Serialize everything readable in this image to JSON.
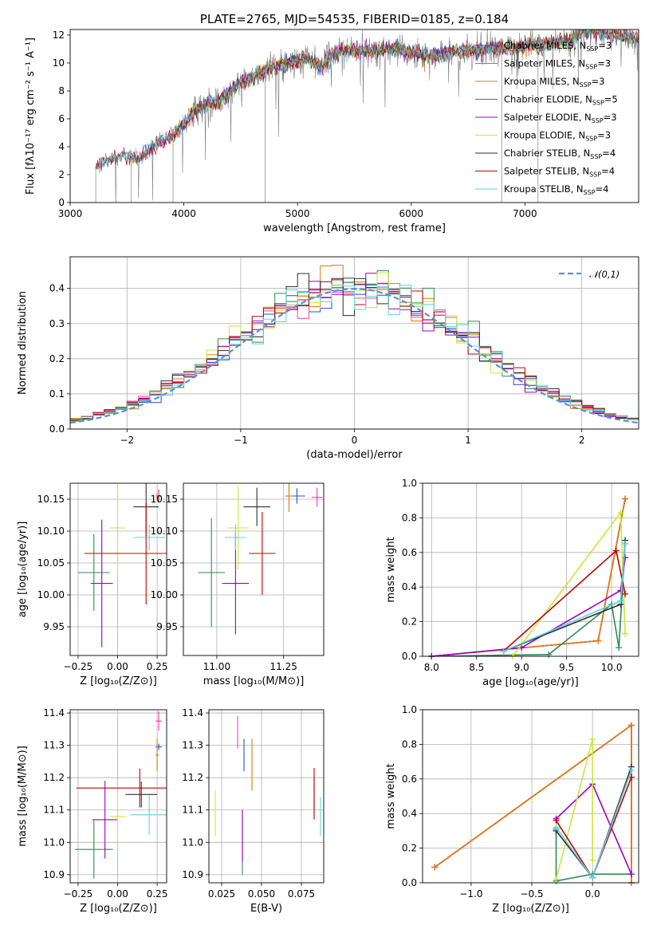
{
  "colors": {
    "Chabrier MILES": "#1f4fd6",
    "Salpeter MILES": "#ff3fa6",
    "Kroupa MILES": "#e07b00",
    "Chabrier ELODIE": "#2e8b57",
    "Salpeter ELODIE": "#9b00c8",
    "Kroupa ELODIE": "#c8e83a",
    "Chabrier STELIB": "#2f2f2f",
    "Salpeter STELIB": "#c00000",
    "Kroupa STELIB": "#5fd3e0",
    "data": "#7f7f7f",
    "normal": "#5a8fd6"
  },
  "chart_data": [
    {
      "id": "spectrum",
      "type": "line",
      "title": "PLATE=2765, MJD=54535, FIBERID=0185, z=0.184",
      "xlabel": "wavelength [Angstrom, rest frame]",
      "ylabel": "Flux [fλ10⁻¹⁷ erg cm⁻² s⁻¹ A⁻¹]",
      "xlim": [
        3000,
        8000
      ],
      "ylim": [
        0,
        12.4
      ],
      "xticks": [
        3000,
        4000,
        5000,
        6000,
        7000
      ],
      "yticks": [
        0,
        2,
        4,
        6,
        8,
        10,
        12
      ],
      "grid": false,
      "legend": "top-right",
      "legend_entries": [
        "Chabrier MILES, N_SSP=3",
        "Salpeter MILES, N_SSP=3",
        "Kroupa MILES, N_SSP=3",
        "Chabrier ELODIE, N_SSP=5",
        "Salpeter ELODIE, N_SSP=3",
        "Kroupa ELODIE, N_SSP=3",
        "Chabrier STELIB, N_SSP=4",
        "Salpeter STELIB, N_SSP=4",
        "Kroupa STELIB, N_SSP=4"
      ],
      "data_profile": [
        [
          3225,
          2.6
        ],
        [
          3300,
          3.0
        ],
        [
          3400,
          3.2
        ],
        [
          3500,
          3.3
        ],
        [
          3600,
          3.1
        ],
        [
          3700,
          3.8
        ],
        [
          3800,
          4.4
        ],
        [
          3900,
          4.7
        ],
        [
          4000,
          5.6
        ],
        [
          4100,
          6.6
        ],
        [
          4200,
          7.0
        ],
        [
          4300,
          7.2
        ],
        [
          4400,
          7.9
        ],
        [
          4500,
          8.6
        ],
        [
          4600,
          9.0
        ],
        [
          4700,
          9.4
        ],
        [
          4800,
          9.8
        ],
        [
          4900,
          9.9
        ],
        [
          5000,
          10.2
        ],
        [
          5100,
          10.3
        ],
        [
          5200,
          9.7
        ],
        [
          5300,
          10.6
        ],
        [
          5400,
          10.9
        ],
        [
          5500,
          10.9
        ],
        [
          5600,
          10.8
        ],
        [
          5700,
          10.9
        ],
        [
          5800,
          11.0
        ],
        [
          5900,
          11.0
        ],
        [
          6000,
          10.8
        ],
        [
          6100,
          10.6
        ],
        [
          6200,
          10.5
        ],
        [
          6300,
          10.7
        ],
        [
          6400,
          10.8
        ],
        [
          6500,
          10.9
        ],
        [
          6600,
          10.9
        ],
        [
          6700,
          11.0
        ],
        [
          6800,
          11.0
        ],
        [
          6900,
          11.1
        ],
        [
          7000,
          11.2
        ],
        [
          7100,
          11.3
        ],
        [
          7200,
          11.4
        ],
        [
          7300,
          11.5
        ],
        [
          7400,
          11.6
        ],
        [
          7500,
          12.3
        ],
        [
          7600,
          12.2
        ],
        [
          7700,
          12.1
        ],
        [
          7800,
          12.0
        ],
        [
          7900,
          11.9
        ],
        [
          8000,
          11.8
        ]
      ],
      "model_start": {
        "Chabrier MILES": 3540,
        "Salpeter MILES": 3540,
        "Kroupa MILES": 3540,
        "Chabrier ELODIE": 3900,
        "Salpeter ELODIE": 3900,
        "Kroupa ELODIE": 3900,
        "Chabrier STELIB": 3225,
        "Salpeter STELIB": 3225,
        "Kroupa STELIB": 3225
      }
    },
    {
      "id": "residuals",
      "type": "histogram",
      "xlabel": "(data-model)/error",
      "ylabel": "Normed distribution",
      "xlim": [
        -2.5,
        2.5
      ],
      "ylim": [
        0,
        0.49
      ],
      "xticks": [
        -2,
        -1,
        0,
        1,
        2
      ],
      "yticks": [
        0.0,
        0.1,
        0.2,
        0.3,
        0.4
      ],
      "grid": true,
      "legend": "top-right",
      "legend_entries": [
        "𝒩(0,1)"
      ],
      "bin_width": 0.1,
      "reference_curve": "normal(0,1) pdf"
    },
    {
      "id": "age-vs-Z",
      "type": "errorbar",
      "xlabel": "Z [log₁₀(Z/Z⊙)]",
      "ylabel": "age  [log₁₀(age/yr)]",
      "xlim": [
        -0.3,
        0.31
      ],
      "ylim": [
        9.905,
        10.175
      ],
      "xticks": [
        -0.25,
        0.0,
        0.25
      ],
      "yticks": [
        9.95,
        10.0,
        10.05,
        10.1,
        10.15
      ],
      "grid": true,
      "points": [
        {
          "series": "Chabrier MILES",
          "x": 0.26,
          "xerr": 0.01,
          "y": 10.155,
          "yerr": 0.01
        },
        {
          "series": "Salpeter MILES",
          "x": 0.26,
          "xerr": 0.02,
          "y": 10.155,
          "yerr": 0.008
        },
        {
          "series": "Kroupa MILES",
          "x": 0.25,
          "xerr": 0.01,
          "y": 10.155,
          "yerr": 0.005
        },
        {
          "series": "Chabrier ELODIE",
          "x": -0.15,
          "xerr": 0.1,
          "y": 10.035,
          "yerr": 0.06
        },
        {
          "series": "Salpeter ELODIE",
          "x": -0.1,
          "xerr": 0.07,
          "y": 10.018,
          "yerr": 0.1
        },
        {
          "series": "Kroupa ELODIE",
          "x": 0.0,
          "xerr": 0.05,
          "y": 10.105,
          "yerr": 0.07
        },
        {
          "series": "Chabrier STELIB",
          "x": 0.18,
          "xerr": 0.08,
          "y": 10.138,
          "yerr": 0.05
        },
        {
          "series": "Salpeter STELIB",
          "x": 0.18,
          "xerr": 0.39,
          "y": 10.065,
          "yerr": 0.08
        },
        {
          "series": "Kroupa STELIB",
          "x": 0.2,
          "xerr": 0.1,
          "y": 10.09,
          "yerr": 0.02
        }
      ]
    },
    {
      "id": "age-vs-mass",
      "type": "errorbar",
      "xlabel": "mass [log₁₀(M/M⊙)]",
      "ylabel": "",
      "xlim": [
        10.875,
        11.4
      ],
      "ylim": [
        9.905,
        10.175
      ],
      "xticks": [
        11.0,
        11.25
      ],
      "yticks": [
        9.95,
        10.0,
        10.05,
        10.1,
        10.15
      ],
      "grid": true,
      "points": [
        {
          "series": "Chabrier MILES",
          "x": 11.3,
          "xerr": 0.03,
          "y": 10.155,
          "yerr": 0.012
        },
        {
          "series": "Salpeter MILES",
          "x": 11.375,
          "xerr": 0.02,
          "y": 10.153,
          "yerr": 0.015
        },
        {
          "series": "Kroupa MILES",
          "x": 11.27,
          "xerr": 0.015,
          "y": 10.155,
          "yerr": 0.025
        },
        {
          "series": "Chabrier ELODIE",
          "x": 10.98,
          "xerr": 0.05,
          "y": 10.035,
          "yerr": 0.085
        },
        {
          "series": "Salpeter ELODIE",
          "x": 11.07,
          "xerr": 0.05,
          "y": 10.018,
          "yerr": 0.08
        },
        {
          "series": "Kroupa ELODIE",
          "x": 11.08,
          "xerr": 0.04,
          "y": 10.105,
          "yerr": 0.065
        },
        {
          "series": "Chabrier STELIB",
          "x": 11.15,
          "xerr": 0.05,
          "y": 10.138,
          "yerr": 0.03
        },
        {
          "series": "Salpeter STELIB",
          "x": 11.17,
          "xerr": 0.05,
          "y": 10.065,
          "yerr": 0.065
        },
        {
          "series": "Kroupa STELIB",
          "x": 11.07,
          "xerr": 0.04,
          "y": 10.09,
          "yerr": 0.02
        }
      ]
    },
    {
      "id": "weight-vs-age",
      "type": "line",
      "xlabel": "age  [log₁₀(age/yr)]",
      "ylabel": "mass weight",
      "xlim": [
        7.9,
        10.3
      ],
      "ylim": [
        0,
        1.0
      ],
      "xticks": [
        8.0,
        8.5,
        9.0,
        9.5,
        10.0
      ],
      "yticks": [
        0.0,
        0.2,
        0.4,
        0.6,
        0.8,
        1.0
      ],
      "grid": true,
      "series": [
        {
          "series": "Chabrier MILES",
          "x": [
            8.0,
            9.85,
            10.15
          ],
          "y": [
            0.0,
            0.09,
            0.91
          ]
        },
        {
          "series": "Salpeter MILES",
          "x": [
            8.0,
            9.85,
            10.15
          ],
          "y": [
            0.0,
            0.09,
            0.91
          ]
        },
        {
          "series": "Kroupa MILES",
          "x": [
            8.0,
            9.85,
            10.15
          ],
          "y": [
            0.0,
            0.09,
            0.91
          ]
        },
        {
          "series": "Chabrier ELODIE",
          "x": [
            8.0,
            9.3,
            10.0,
            10.08,
            10.15
          ],
          "y": [
            0.0,
            0.01,
            0.3,
            0.05,
            0.65
          ]
        },
        {
          "series": "Salpeter ELODIE",
          "x": [
            8.0,
            9.0,
            10.1,
            10.15
          ],
          "y": [
            0.0,
            0.05,
            0.38,
            0.57
          ]
        },
        {
          "series": "Kroupa ELODIE",
          "x": [
            8.9,
            10.1,
            10.15
          ],
          "y": [
            0.0,
            0.83,
            0.13
          ]
        },
        {
          "series": "Chabrier STELIB",
          "x": [
            8.8,
            10.1,
            10.15
          ],
          "y": [
            0.03,
            0.3,
            0.67
          ]
        },
        {
          "series": "Salpeter STELIB",
          "x": [
            8.8,
            10.05,
            10.15
          ],
          "y": [
            0.03,
            0.61,
            0.36
          ]
        },
        {
          "series": "Kroupa STELIB",
          "x": [
            8.8,
            10.1,
            10.15
          ],
          "y": [
            0.03,
            0.32,
            0.65
          ]
        }
      ]
    },
    {
      "id": "mass-vs-Z",
      "type": "errorbar",
      "xlabel": "Z [log₁₀(Z/Z⊙)]",
      "ylabel": "mass [log₁₀(M/M⊙)]",
      "xlim": [
        -0.3,
        0.31
      ],
      "ylim": [
        10.875,
        11.41
      ],
      "xticks": [
        -0.25,
        0.0,
        0.25
      ],
      "yticks": [
        10.9,
        11.0,
        11.1,
        11.2,
        11.3,
        11.4
      ],
      "grid": true,
      "points": [
        {
          "series": "Chabrier MILES",
          "x": 0.26,
          "xerr": 0.02,
          "y": 11.295,
          "yerr": 0.01
        },
        {
          "series": "Salpeter MILES",
          "x": 0.26,
          "xerr": 0.02,
          "y": 11.375,
          "yerr": 0.03
        },
        {
          "series": "Kroupa MILES",
          "x": 0.25,
          "xerr": 0.01,
          "y": 11.27,
          "yerr": 0.05
        },
        {
          "series": "Chabrier ELODIE",
          "x": -0.15,
          "xerr": 0.12,
          "y": 10.978,
          "yerr": 0.09
        },
        {
          "series": "Salpeter ELODIE",
          "x": -0.08,
          "xerr": 0.08,
          "y": 11.07,
          "yerr": 0.12
        },
        {
          "series": "Kroupa ELODIE",
          "x": 0.0,
          "xerr": 0.05,
          "y": 11.08,
          "yerr": 0.07
        },
        {
          "series": "Chabrier STELIB",
          "x": 0.15,
          "xerr": 0.1,
          "y": 11.148,
          "yerr": 0.04
        },
        {
          "series": "Salpeter STELIB",
          "x": 0.14,
          "xerr": 0.4,
          "y": 11.168,
          "yerr": 0.06
        },
        {
          "series": "Kroupa STELIB",
          "x": 0.2,
          "xerr": 0.12,
          "y": 11.085,
          "yerr": 0.06
        }
      ]
    },
    {
      "id": "mass-vs-ebv",
      "type": "errorbar",
      "xlabel": "E(B-V)",
      "ylabel": "",
      "xlim": [
        0.017,
        0.089
      ],
      "ylim": [
        10.875,
        11.41
      ],
      "xticks": [
        0.025,
        0.05,
        0.075
      ],
      "yticks": [
        10.9,
        11.0,
        11.1,
        11.2,
        11.3,
        11.4
      ],
      "grid": true,
      "points": [
        {
          "series": "Chabrier MILES",
          "x": 0.039,
          "xerr": 0,
          "y": 11.27,
          "yerr": 0.05
        },
        {
          "series": "Salpeter MILES",
          "x": 0.035,
          "xerr": 0,
          "y": 11.34,
          "yerr": 0.05
        },
        {
          "series": "Kroupa MILES",
          "x": 0.044,
          "xerr": 0,
          "y": 11.24,
          "yerr": 0.08
        },
        {
          "series": "Chabrier ELODIE",
          "x": 0.038,
          "xerr": 0,
          "y": 11.0,
          "yerr": 0.1
        },
        {
          "series": "Salpeter ELODIE",
          "x": 0.038,
          "xerr": 0,
          "y": 11.02,
          "yerr": 0.08
        },
        {
          "series": "Kroupa ELODIE",
          "x": 0.021,
          "xerr": 0,
          "y": 11.09,
          "yerr": 0.07
        },
        {
          "series": "Chabrier STELIB",
          "x": 0.083,
          "xerr": 0,
          "y": 11.14,
          "yerr": 0.06
        },
        {
          "series": "Salpeter STELIB",
          "x": 0.083,
          "xerr": 0,
          "y": 11.15,
          "yerr": 0.08
        },
        {
          "series": "Kroupa STELIB",
          "x": 0.087,
          "xerr": 0,
          "y": 11.08,
          "yerr": 0.06
        }
      ]
    },
    {
      "id": "weight-vs-Z",
      "type": "line",
      "xlabel": "Z [log₁₀(Z/Z⊙)]",
      "ylabel": "mass weight",
      "xlim": [
        -1.4,
        0.38
      ],
      "ylim": [
        0,
        1.0
      ],
      "xticks": [
        -1.0,
        -0.5,
        0.0
      ],
      "yticks": [
        0.0,
        0.2,
        0.4,
        0.6,
        0.8,
        1.0
      ],
      "grid": true,
      "series": [
        {
          "series": "Chabrier MILES",
          "x": [
            -1.3,
            0.32,
            0.32
          ],
          "y": [
            0.09,
            0.91,
            0.0
          ]
        },
        {
          "series": "Salpeter MILES",
          "x": [
            -1.3,
            0.32,
            0.32
          ],
          "y": [
            0.09,
            0.91,
            0.0
          ]
        },
        {
          "series": "Kroupa MILES",
          "x": [
            -1.3,
            0.32,
            0.32
          ],
          "y": [
            0.09,
            0.91,
            0.0
          ]
        },
        {
          "series": "Chabrier ELODIE",
          "x": [
            -0.3,
            -0.3,
            0.0,
            0.32
          ],
          "y": [
            0.31,
            0.01,
            0.05,
            0.05
          ]
        },
        {
          "series": "Salpeter ELODIE",
          "x": [
            -0.3,
            0.0,
            0.32
          ],
          "y": [
            0.37,
            0.57,
            0.05
          ]
        },
        {
          "series": "Kroupa ELODIE",
          "x": [
            -0.3,
            0.0,
            0.0
          ],
          "y": [
            0.02,
            0.83,
            0.13
          ]
        },
        {
          "series": "Chabrier STELIB",
          "x": [
            -0.3,
            0.0,
            0.32
          ],
          "y": [
            0.3,
            0.03,
            0.67
          ]
        },
        {
          "series": "Salpeter STELIB",
          "x": [
            -0.3,
            0.0,
            0.32
          ],
          "y": [
            0.36,
            0.03,
            0.61
          ]
        },
        {
          "series": "Kroupa STELIB",
          "x": [
            -0.3,
            0.0,
            0.32
          ],
          "y": [
            0.32,
            0.03,
            0.65
          ]
        }
      ]
    }
  ]
}
